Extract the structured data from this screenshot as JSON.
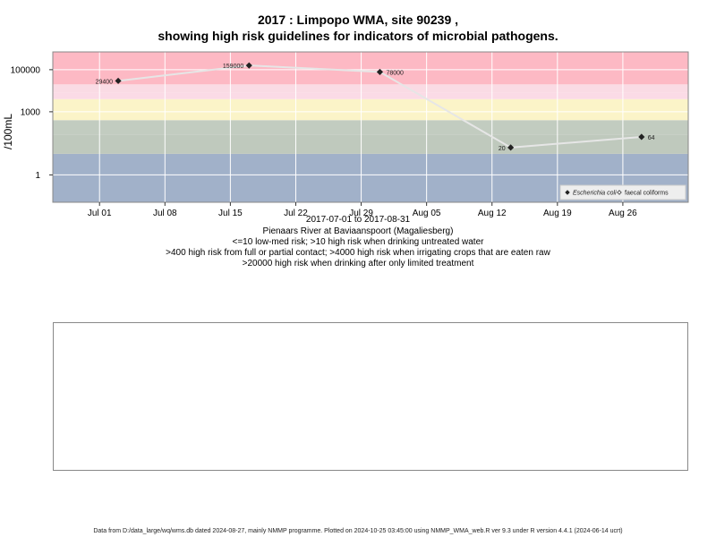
{
  "title_line1": "2017 : Limpopo WMA, site 90239 ,",
  "title_line2": "showing high risk guidelines for indicators of microbial pathogens.",
  "chart_data": {
    "type": "scatter",
    "ylabel": "/100mL",
    "yscale": "log",
    "ylim": [
      0.05,
      700000
    ],
    "y_ticks": [
      {
        "value": 1,
        "label": "1"
      },
      {
        "value": 1000,
        "label": "1000"
      },
      {
        "value": 100000,
        "label": "100000"
      }
    ],
    "xlim": [
      "2017-06-26",
      "2017-09-02"
    ],
    "x_ticks": [
      {
        "date": "2017-07-01",
        "label": "Jul 01"
      },
      {
        "date": "2017-07-08",
        "label": "Jul 08"
      },
      {
        "date": "2017-07-15",
        "label": "Jul 15"
      },
      {
        "date": "2017-07-22",
        "label": "Jul 22"
      },
      {
        "date": "2017-07-29",
        "label": "Jul 29"
      },
      {
        "date": "2017-08-05",
        "label": "Aug 05"
      },
      {
        "date": "2017-08-12",
        "label": "Aug 12"
      },
      {
        "date": "2017-08-19",
        "label": "Aug 19"
      },
      {
        "date": "2017-08-26",
        "label": "Aug 26"
      }
    ],
    "bands": [
      {
        "from": 0.05,
        "to": 10,
        "color": "#a1b1c9"
      },
      {
        "from": 10,
        "to": 80,
        "color": "#bfc9bd"
      },
      {
        "from": 80,
        "to": 400,
        "color": "#c2ccc0"
      },
      {
        "from": 400,
        "to": 4000,
        "color": "#fbf4c8"
      },
      {
        "from": 4000,
        "to": 8000,
        "color": "#fbdbe6"
      },
      {
        "from": 8000,
        "to": 20000,
        "color": "#fadbe4"
      },
      {
        "from": 20000,
        "to": 700000,
        "color": "#fdb9c4"
      }
    ],
    "series": [
      {
        "name": "Escherichia coli",
        "marker": "filled-diamond",
        "points": [
          {
            "date": "2017-07-03",
            "value": 29400,
            "label": "29400",
            "label_side": "left"
          },
          {
            "date": "2017-07-17",
            "value": 159000,
            "label": "159000",
            "label_side": "left"
          },
          {
            "date": "2017-07-31",
            "value": 78000,
            "label": "78000",
            "label_side": "right"
          },
          {
            "date": "2017-08-14",
            "value": 20,
            "label": "20",
            "label_side": "left"
          },
          {
            "date": "2017-08-28",
            "value": 64,
            "label": "64",
            "label_side": "right"
          }
        ]
      },
      {
        "name": "faecal coliforms",
        "marker": "open-diamond",
        "points": []
      }
    ],
    "legend_position": "bottom-right",
    "grid": true,
    "xlabel_lines": [
      "2017-07-01 to 2017-08-31",
      "Pienaars River at Baviaanspoort (Magaliesberg)",
      "<=10 low-med risk; >10 high risk when drinking untreated water",
      ">400 high risk from full or partial contact; >4000 high risk when irrigating crops that are eaten raw",
      ">20000 high risk when drinking after only limited treatment"
    ]
  },
  "footer": "Data from D:/data_large/wq/wms.db dated 2024-08-27, mainly NMMP programme. Plotted on 2024-10-25 03:45:00 using NMMP_WMA_web.R ver 9.3 under R version 4.4.1 (2024-06-14 ucrt)"
}
